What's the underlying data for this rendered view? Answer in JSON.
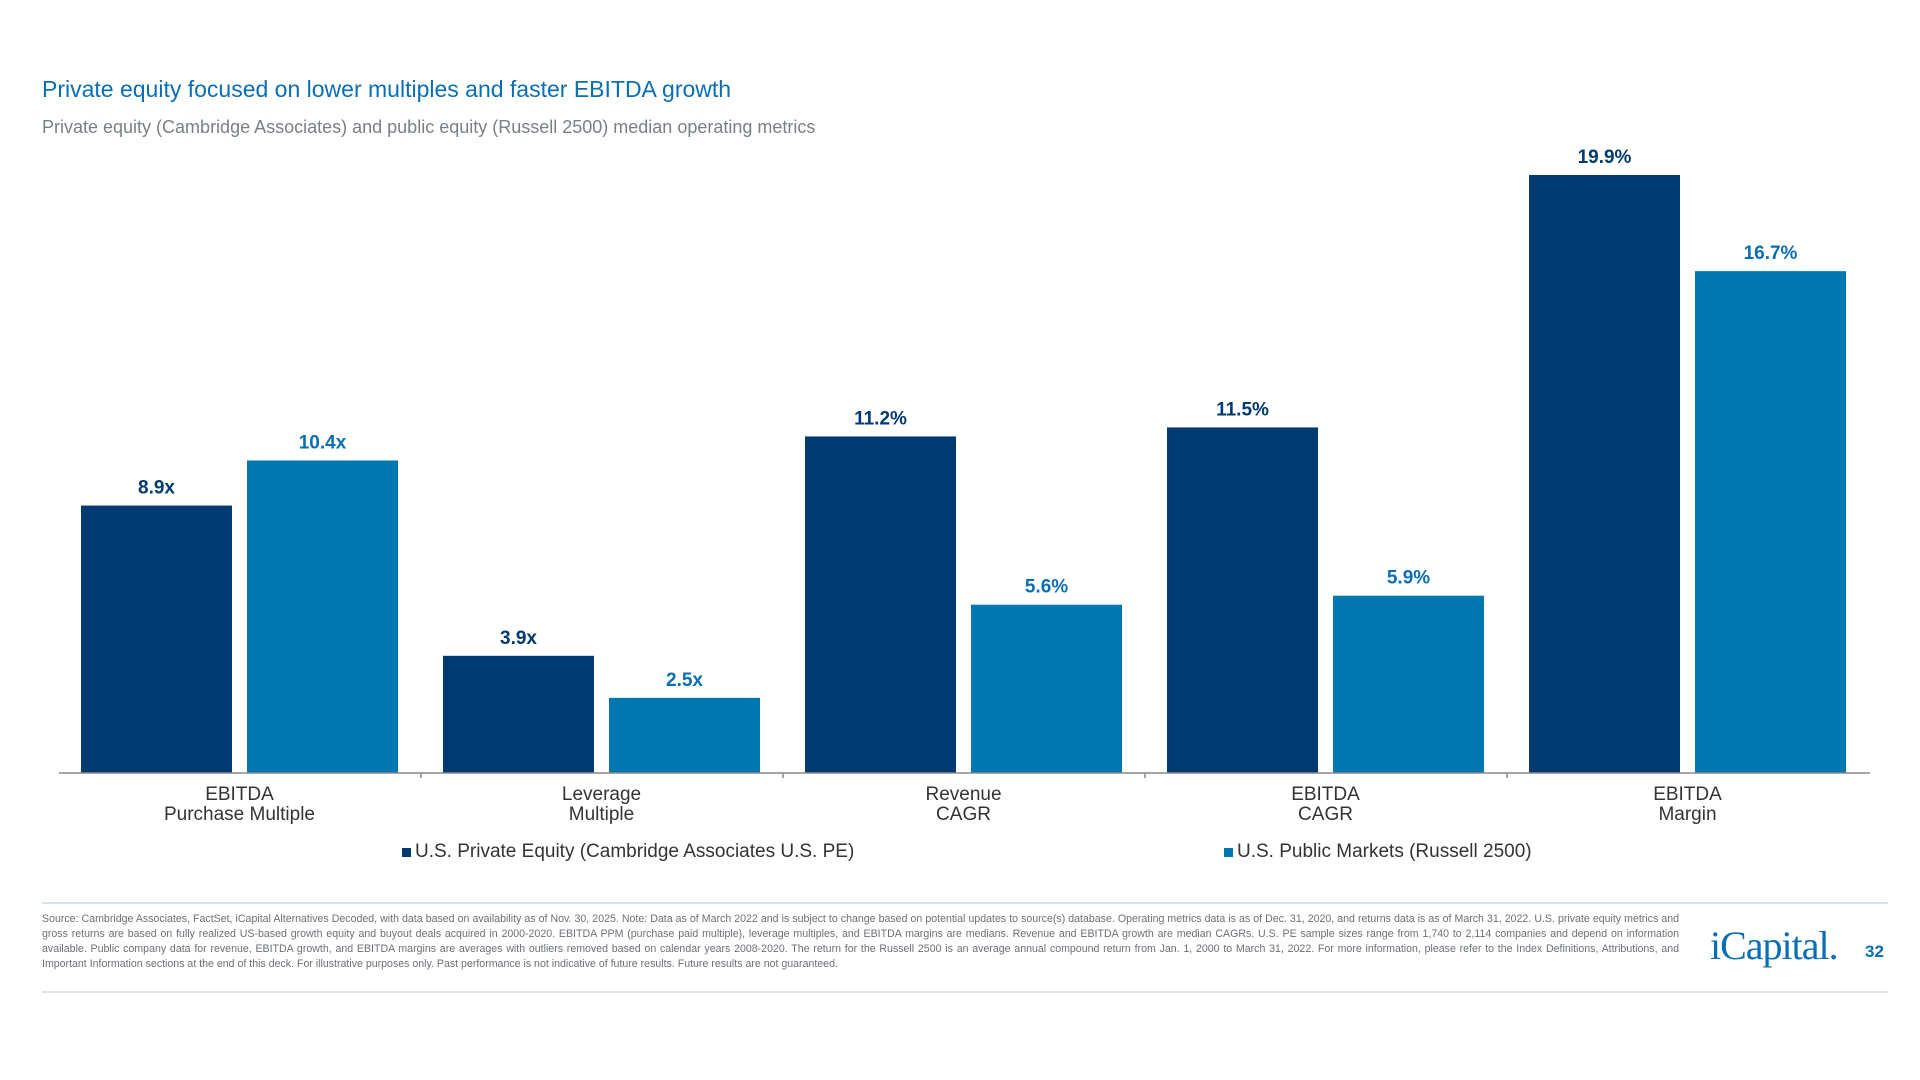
{
  "header": {
    "title": "Private equity focused on lower multiples and faster EBITDA growth",
    "subtitle": "Private equity (Cambridge Associates) and public equity (Russell 2500) median operating metrics"
  },
  "chart_data": {
    "type": "bar",
    "categories": [
      [
        "EBITDA",
        "Purchase Multiple"
      ],
      [
        "Leverage",
        "Multiple"
      ],
      [
        "Revenue",
        "CAGR"
      ],
      [
        "EBITDA",
        "CAGR"
      ],
      [
        "EBITDA",
        "Margin"
      ]
    ],
    "series": [
      {
        "name": "U.S. Private Equity (Cambridge Associates U.S. PE)",
        "values": [
          8.9,
          3.9,
          11.2,
          11.5,
          19.9
        ],
        "labels": [
          "8.9x",
          "3.9x",
          "11.2%",
          "11.5%",
          "19.9%"
        ],
        "color": "#003a70"
      },
      {
        "name": "U.S. Public Markets (Russell 2500)",
        "values": [
          10.4,
          2.5,
          5.6,
          5.9,
          16.7
        ],
        "labels": [
          "10.4x",
          "2.5x",
          "5.6%",
          "5.9%",
          "16.7%"
        ],
        "color": "#0077b0"
      }
    ],
    "ylim": [
      0,
      19.9
    ],
    "grid": false,
    "legend": "bottom"
  },
  "footer": {
    "source": "Source: Cambridge Associates, FactSet, iCapital Alternatives Decoded, with data based on availability as of Nov. 30, 2025. Note: Data as of March 2022 and is subject to change based on potential updates to source(s) database. Operating metrics data is as of Dec. 31, 2020, and returns data is as of March 31, 2022. U.S. private equity metrics and gross returns are based on fully realized US-based growth equity and buyout deals acquired in 2000-2020. EBITDA  PPM (purchase paid multiple), leverage multiples, and EBITDA margins are medians.  Revenue and EBITDA growth are median CAGRs. U.S. PE sample sizes range from 1,740 to 2,114 companies and depend on information available. Public company data for revenue, EBITDA growth, and EBITDA margins are averages with outliers removed based on calendar years 2008-2020. The return for the Russell 2500 is an average annual compound return from Jan. 1, 2000 to March 31, 2022. For more information, please refer to the Index Definitions, Attributions, and Important Information sections at the end of this deck. For illustrative purposes only. Past performance is not indicative of future results. Future results are not guaranteed.",
    "logo": "iCapital.",
    "page_number": "32"
  }
}
